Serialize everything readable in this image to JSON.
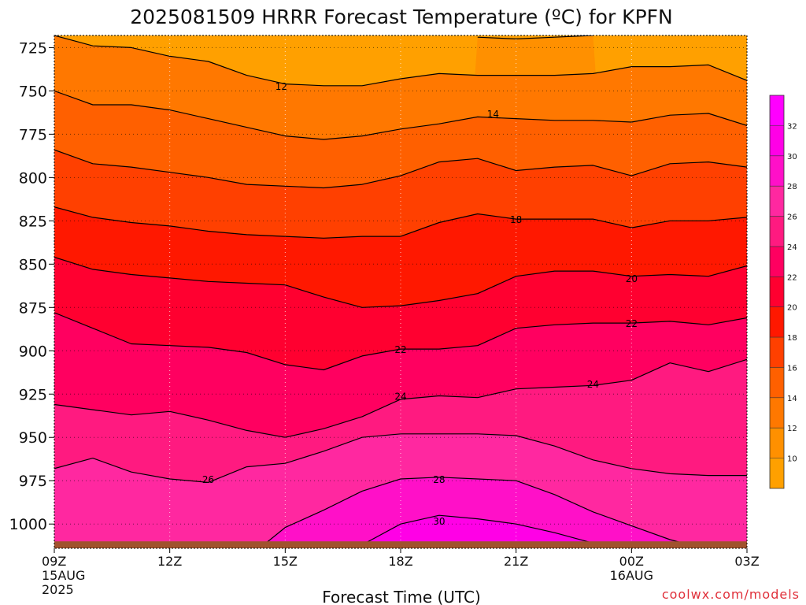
{
  "chart_data": {
    "type": "heatmap",
    "title": "2025081509 HRRR Forecast Temperature (ºC) for KPFN",
    "xlabel": "Forecast Time (UTC)",
    "ylabel": "",
    "watermark": "coolwx.com/models",
    "x_ticks": [
      {
        "hour": 0,
        "lines": [
          "09Z",
          "15AUG",
          "2025"
        ]
      },
      {
        "hour": 3,
        "lines": [
          "12Z"
        ]
      },
      {
        "hour": 6,
        "lines": [
          "15Z"
        ]
      },
      {
        "hour": 9,
        "lines": [
          "18Z"
        ]
      },
      {
        "hour": 12,
        "lines": [
          "21Z"
        ]
      },
      {
        "hour": 15,
        "lines": [
          "00Z",
          "16AUG"
        ]
      },
      {
        "hour": 18,
        "lines": [
          "03Z"
        ]
      }
    ],
    "xlim": [
      0,
      18
    ],
    "ylim": [
      1014,
      718
    ],
    "y_ticks": [
      725,
      750,
      775,
      800,
      825,
      850,
      875,
      900,
      925,
      950,
      975,
      1000
    ],
    "ground_pressure": 1010,
    "levels": [
      10,
      12,
      14,
      16,
      18,
      20,
      22,
      24,
      26,
      28,
      30,
      32
    ],
    "colorbar": {
      "range": [
        8,
        34
      ],
      "labels": [
        10,
        12,
        14,
        16,
        18,
        20,
        22,
        24,
        26,
        28,
        30,
        32
      ],
      "colors": [
        "#ffa000",
        "#ff9000",
        "#ff7800",
        "#ff6000",
        "#ff4000",
        "#ff1800",
        "#ff0030",
        "#ff0060",
        "#ff1a80",
        "#ff28a0",
        "#ff10c8",
        "#ff00e6",
        "#ff00ff"
      ]
    },
    "hours": [
      0,
      1,
      2,
      3,
      4,
      5,
      6,
      7,
      8,
      9,
      10,
      11,
      12,
      13,
      14,
      15,
      16,
      17,
      18
    ],
    "isotherms": [
      {
        "value": 10,
        "pressures": [
          null,
          null,
          null,
          null,
          null,
          null,
          null,
          null,
          null,
          null,
          null,
          719,
          720,
          719,
          718,
          null,
          null,
          null,
          null
        ]
      },
      {
        "value": 12,
        "pressures": [
          718,
          724,
          725,
          730,
          733,
          741,
          746,
          747,
          747,
          743,
          740,
          741,
          741,
          741,
          740,
          736,
          736,
          735,
          744
        ]
      },
      {
        "value": 14,
        "pressures": [
          750,
          758,
          758,
          761,
          766,
          771,
          776,
          778,
          776,
          772,
          769,
          765,
          766,
          767,
          767,
          768,
          764,
          763,
          770
        ]
      },
      {
        "value": 16,
        "pressures": [
          784,
          792,
          794,
          797,
          800,
          804,
          805,
          806,
          804,
          799,
          791,
          789,
          796,
          794,
          793,
          799,
          792,
          791,
          794
        ]
      },
      {
        "value": 18,
        "pressures": [
          817,
          823,
          826,
          828,
          831,
          833,
          834,
          835,
          834,
          834,
          826,
          821,
          824,
          824,
          824,
          829,
          825,
          825,
          823
        ]
      },
      {
        "value": 20,
        "pressures": [
          846,
          853,
          856,
          858,
          860,
          861,
          862,
          869,
          875,
          874,
          871,
          867,
          857,
          854,
          854,
          857,
          856,
          857,
          851
        ]
      },
      {
        "value": 22,
        "pressures": [
          878,
          887,
          896,
          897,
          898,
          901,
          908,
          911,
          903,
          899,
          899,
          897,
          887,
          885,
          884,
          884,
          883,
          885,
          881
        ]
      },
      {
        "value": 24,
        "pressures": [
          931,
          934,
          937,
          935,
          940,
          946,
          950,
          945,
          938,
          928,
          926,
          927,
          922,
          921,
          920,
          917,
          907,
          912,
          905
        ]
      },
      {
        "value": 26,
        "pressures": [
          968,
          962,
          970,
          974,
          976,
          967,
          965,
          958,
          950,
          948,
          948,
          948,
          949,
          955,
          963,
          968,
          971,
          972,
          972
        ]
      },
      {
        "value": 28,
        "pressures": [
          null,
          null,
          null,
          null,
          null,
          1020,
          1002,
          992,
          981,
          974,
          973,
          974,
          975,
          983,
          993,
          1001,
          1009,
          1015,
          null
        ]
      },
      {
        "value": 30,
        "pressures": [
          null,
          null,
          null,
          null,
          null,
          null,
          null,
          null,
          1012,
          1000,
          995,
          997,
          1000,
          1005,
          1011,
          1017,
          null,
          null,
          null
        ]
      }
    ],
    "contour_labels": [
      {
        "text": "12",
        "hour": 5.9,
        "pressure": 747
      },
      {
        "text": "14",
        "hour": 11.4,
        "pressure": 763
      },
      {
        "text": "18",
        "hour": 12.0,
        "pressure": 824
      },
      {
        "text": "20",
        "hour": 15.0,
        "pressure": 858
      },
      {
        "text": "22",
        "hour": 15.0,
        "pressure": 884
      },
      {
        "text": "22",
        "hour": 9.0,
        "pressure": 899
      },
      {
        "text": "24",
        "hour": 9.0,
        "pressure": 926
      },
      {
        "text": "24",
        "hour": 14.0,
        "pressure": 919
      },
      {
        "text": "26",
        "hour": 4.0,
        "pressure": 974
      },
      {
        "text": "28",
        "hour": 10.0,
        "pressure": 974
      },
      {
        "text": "30",
        "hour": 10.0,
        "pressure": 998
      }
    ],
    "grid": true
  }
}
